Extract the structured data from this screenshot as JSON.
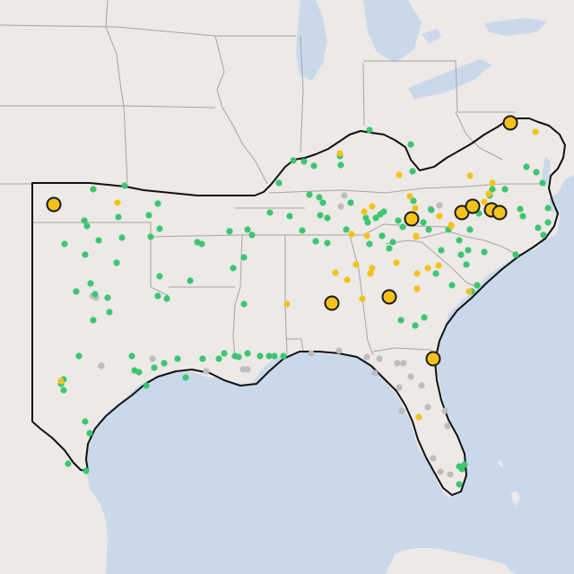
{
  "map": {
    "colors": {
      "water": "#c9d9ea",
      "land": "#ece9e6",
      "state_border": "#a5a5a5",
      "region_outline": "#111111",
      "green": "#3cc66f",
      "yellow": "#f4c21a",
      "gray": "#bdbdbd",
      "large_marker_stroke": "#1a1a1a"
    },
    "icons": {
      "small_marker": "filled-circle",
      "large_marker": "outlined-circle"
    },
    "legend": null
  },
  "points": {
    "green": [
      [
        104,
        211
      ],
      [
        139,
        207
      ],
      [
        132,
        242
      ],
      [
        176,
        227
      ],
      [
        166,
        240
      ],
      [
        178,
        255
      ],
      [
        94,
        246
      ],
      [
        97,
        252
      ],
      [
        72,
        272
      ],
      [
        95,
        284
      ],
      [
        110,
        268
      ],
      [
        136,
        265
      ],
      [
        168,
        264
      ],
      [
        220,
        270
      ],
      [
        225,
        272
      ],
      [
        130,
        293
      ],
      [
        178,
        308
      ],
      [
        212,
        313
      ],
      [
        101,
        316
      ],
      [
        106,
        328
      ],
      [
        120,
        332
      ],
      [
        104,
        357
      ],
      [
        85,
        325
      ],
      [
        186,
        333
      ],
      [
        176,
        330
      ],
      [
        122,
        348
      ],
      [
        88,
        397
      ],
      [
        147,
        397
      ],
      [
        150,
        413
      ],
      [
        155,
        415
      ],
      [
        172,
        410
      ],
      [
        183,
        405
      ],
      [
        198,
        400
      ],
      [
        207,
        421
      ],
      [
        226,
        400
      ],
      [
        244,
        400
      ],
      [
        250,
        394
      ],
      [
        262,
        397
      ],
      [
        266,
        398
      ],
      [
        276,
        394
      ],
      [
        290,
        397
      ],
      [
        300,
        397
      ],
      [
        306,
        397
      ],
      [
        316,
        397
      ],
      [
        163,
        430
      ],
      [
        71,
        423
      ],
      [
        68,
        428
      ],
      [
        71,
        435
      ],
      [
        95,
        470
      ],
      [
        100,
        483
      ],
      [
        76,
        517
      ],
      [
        96,
        525
      ],
      [
        260,
        299
      ],
      [
        272,
        339
      ],
      [
        256,
        258
      ],
      [
        276,
        256
      ],
      [
        281,
        262
      ],
      [
        272,
        287
      ],
      [
        301,
        237
      ],
      [
        311,
        204
      ],
      [
        327,
        179
      ],
      [
        339,
        180
      ],
      [
        350,
        185
      ],
      [
        380,
        184
      ],
      [
        379,
        174
      ],
      [
        345,
        217
      ],
      [
        356,
        220
      ],
      [
        360,
        226
      ],
      [
        357,
        240
      ],
      [
        365,
        243
      ],
      [
        323,
        241
      ],
      [
        337,
        257
      ],
      [
        352,
        269
      ],
      [
        365,
        271
      ],
      [
        412,
        145
      ],
      [
        458,
        161
      ],
      [
        460,
        191
      ],
      [
        461,
        224
      ],
      [
        424,
        239
      ],
      [
        428,
        236
      ],
      [
        419,
        243
      ],
      [
        410,
        248
      ],
      [
        408,
        243
      ],
      [
        426,
        263
      ],
      [
        438,
        270
      ],
      [
        434,
        277
      ],
      [
        444,
        246
      ],
      [
        472,
        248
      ],
      [
        481,
        234
      ],
      [
        391,
        226
      ],
      [
        386,
        256
      ],
      [
        412,
        272
      ],
      [
        449,
        253
      ],
      [
        478,
        256
      ],
      [
        500,
        256
      ],
      [
        512,
        268
      ],
      [
        524,
        256
      ],
      [
        534,
        238
      ],
      [
        546,
        218
      ],
      [
        549,
        211
      ],
      [
        563,
        211
      ],
      [
        580,
        233
      ],
      [
        583,
        241
      ],
      [
        587,
        186
      ],
      [
        598,
        192
      ],
      [
        605,
        204
      ],
      [
        611,
        232
      ],
      [
        611,
        248
      ],
      [
        600,
        254
      ],
      [
        606,
        262
      ],
      [
        575,
        284
      ],
      [
        540,
        281
      ],
      [
        522,
        279
      ],
      [
        514,
        284
      ],
      [
        520,
        295
      ],
      [
        492,
        279
      ],
      [
        486,
        305
      ],
      [
        504,
        318
      ],
      [
        532,
        318
      ],
      [
        526,
        325
      ],
      [
        473,
        354
      ],
      [
        463,
        363
      ],
      [
        447,
        357
      ],
      [
        512,
        520
      ],
      [
        518,
        518
      ],
      [
        515,
        523
      ],
      [
        512,
        540
      ]
    ],
    "yellow": [
      [
        131,
        226
      ],
      [
        379,
        171
      ],
      [
        406,
        236
      ],
      [
        415,
        230
      ],
      [
        445,
        195
      ],
      [
        457,
        219
      ],
      [
        463,
        232
      ],
      [
        490,
        241
      ],
      [
        503,
        251
      ],
      [
        524,
        196
      ],
      [
        464,
        263
      ],
      [
        392,
        261
      ],
      [
        409,
        263
      ],
      [
        442,
        293
      ],
      [
        477,
        299
      ],
      [
        465,
        305
      ],
      [
        415,
        299
      ],
      [
        413,
        305
      ],
      [
        374,
        304
      ],
      [
        387,
        312
      ],
      [
        397,
        295
      ],
      [
        320,
        339
      ],
      [
        404,
        333
      ],
      [
        523,
        325
      ],
      [
        465,
        322
      ],
      [
        467,
        465
      ],
      [
        503,
        252
      ],
      [
        525,
        232
      ],
      [
        549,
        204
      ],
      [
        540,
        225
      ],
      [
        545,
        216
      ],
      [
        597,
        147
      ],
      [
        68,
        425
      ],
      [
        489,
        296
      ],
      [
        464,
        264
      ]
    ],
    "gray": [
      [
        103,
        330
      ],
      [
        107,
        332
      ],
      [
        113,
        408
      ],
      [
        170,
        400
      ],
      [
        230,
        414
      ],
      [
        271,
        412
      ],
      [
        347,
        394
      ],
      [
        378,
        391
      ],
      [
        409,
        398
      ],
      [
        423,
        400
      ],
      [
        418,
        416
      ],
      [
        443,
        405
      ],
      [
        450,
        405
      ],
      [
        458,
        420
      ],
      [
        470,
        430
      ],
      [
        477,
        454
      ],
      [
        496,
        458
      ],
      [
        499,
        475
      ],
      [
        483,
        511
      ],
      [
        491,
        526
      ],
      [
        502,
        529
      ],
      [
        448,
        458
      ],
      [
        445,
        432
      ],
      [
        480,
        233
      ],
      [
        490,
        229
      ],
      [
        532,
        230
      ],
      [
        384,
        218
      ],
      [
        380,
        230
      ],
      [
        276,
        412
      ]
    ],
    "large_yellow": [
      [
        60,
        228
      ],
      [
        569,
        137
      ],
      [
        459,
        244
      ],
      [
        515,
        237
      ],
      [
        527,
        230
      ],
      [
        548,
        234
      ],
      [
        557,
        237
      ],
      [
        370,
        338
      ],
      [
        434,
        331
      ],
      [
        483,
        400
      ]
    ]
  }
}
